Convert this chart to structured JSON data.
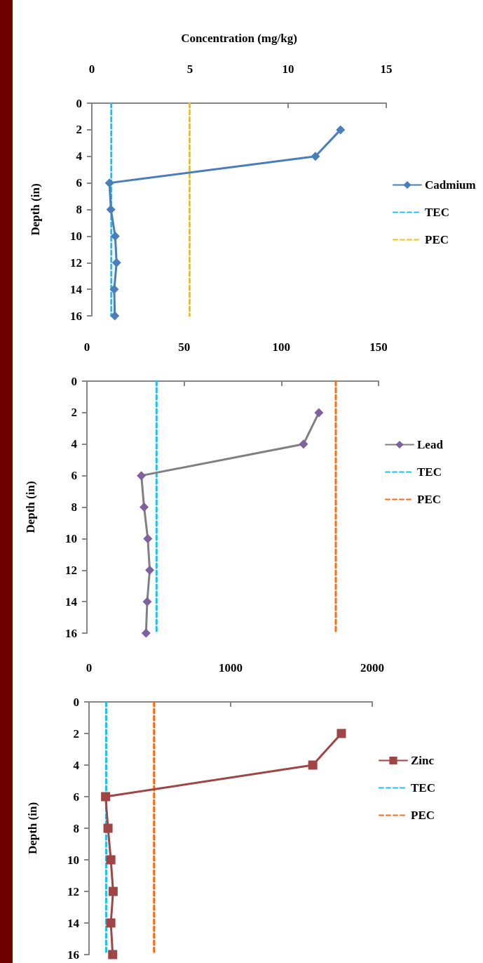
{
  "chart_data": [
    {
      "type": "line",
      "xlabel": "Concentration (mg/kg)",
      "ylabel": "Depth (in)",
      "xlim": [
        0,
        15
      ],
      "xticks": [
        0,
        5,
        10,
        15
      ],
      "ylim": [
        16,
        0
      ],
      "yticks": [
        0,
        2,
        4,
        6,
        8,
        10,
        12,
        14,
        16
      ],
      "legend": "right",
      "series": [
        {
          "name": "Cadmium",
          "color": "#4a7ebb",
          "marker": "diamond",
          "line_style": "solid",
          "x": [
            12.67,
            11.39,
            0.9,
            0.97,
            1.19,
            1.26,
            1.14,
            1.17
          ],
          "values": [
            2,
            4,
            6,
            8,
            10,
            12,
            14,
            16
          ]
        },
        {
          "name": "TEC",
          "color": "#1ec0f0",
          "marker": "none",
          "line_style": "dashed",
          "x": [
            0.99,
            0.99
          ],
          "values": [
            0,
            16
          ]
        },
        {
          "name": "PEC",
          "color": "#ffc000",
          "marker": "none",
          "line_style": "dashed",
          "x": [
            4.98,
            4.98
          ],
          "values": [
            0,
            16
          ]
        }
      ]
    },
    {
      "type": "line",
      "ylabel": "Depth (in)",
      "xlim": [
        0,
        150
      ],
      "xticks": [
        0,
        50,
        100,
        150
      ],
      "ylim": [
        16,
        0
      ],
      "yticks": [
        0,
        2,
        4,
        6,
        8,
        10,
        12,
        14,
        16
      ],
      "legend": "right",
      "series": [
        {
          "name": "Lead",
          "color": "#808080",
          "colors": [
            "#7f60a0",
            "#7f60a0",
            "#7f60a0",
            "#7f60a0",
            "#7f60a0",
            "#7f60a0",
            "#7f60a0",
            "#7f60a0"
          ],
          "marker": "diamond",
          "line_style": "solid",
          "x": [
            119.3,
            111.4,
            28,
            29.4,
            31.3,
            32.3,
            31,
            30.4
          ],
          "values": [
            2,
            4,
            6,
            8,
            10,
            12,
            14,
            16
          ]
        },
        {
          "name": "TEC",
          "color": "#1ec0f0",
          "marker": "none",
          "line_style": "dashed",
          "x": [
            35.8,
            35.8
          ],
          "values": [
            0,
            16
          ]
        },
        {
          "name": "PEC",
          "color": "#ff6a10",
          "marker": "none",
          "line_style": "dashed",
          "x": [
            128,
            128
          ],
          "values": [
            0,
            16
          ]
        }
      ]
    },
    {
      "type": "line",
      "ylabel": "Depth (in)",
      "xlim": [
        0,
        2000
      ],
      "xticks": [
        0,
        1000,
        2000
      ],
      "ylim": [
        16,
        0
      ],
      "yticks": [
        0,
        2,
        4,
        6,
        8,
        10,
        12,
        14,
        16
      ],
      "legend": "right",
      "series": [
        {
          "name": "Zinc",
          "color": "#a04545",
          "marker": "square",
          "line_style": "solid",
          "x": [
            1782,
            1580,
            117,
            134,
            154,
            170,
            154,
            167
          ],
          "values": [
            2,
            4,
            6,
            8,
            10,
            12,
            14,
            16
          ]
        },
        {
          "name": "TEC",
          "color": "#1ec0f0",
          "marker": "none",
          "line_style": "dashed",
          "x": [
            121,
            121
          ],
          "values": [
            0,
            16
          ]
        },
        {
          "name": "PEC",
          "color": "#ff6a10",
          "marker": "none",
          "line_style": "dashed",
          "x": [
            459,
            459
          ],
          "values": [
            0,
            16
          ]
        }
      ]
    }
  ]
}
